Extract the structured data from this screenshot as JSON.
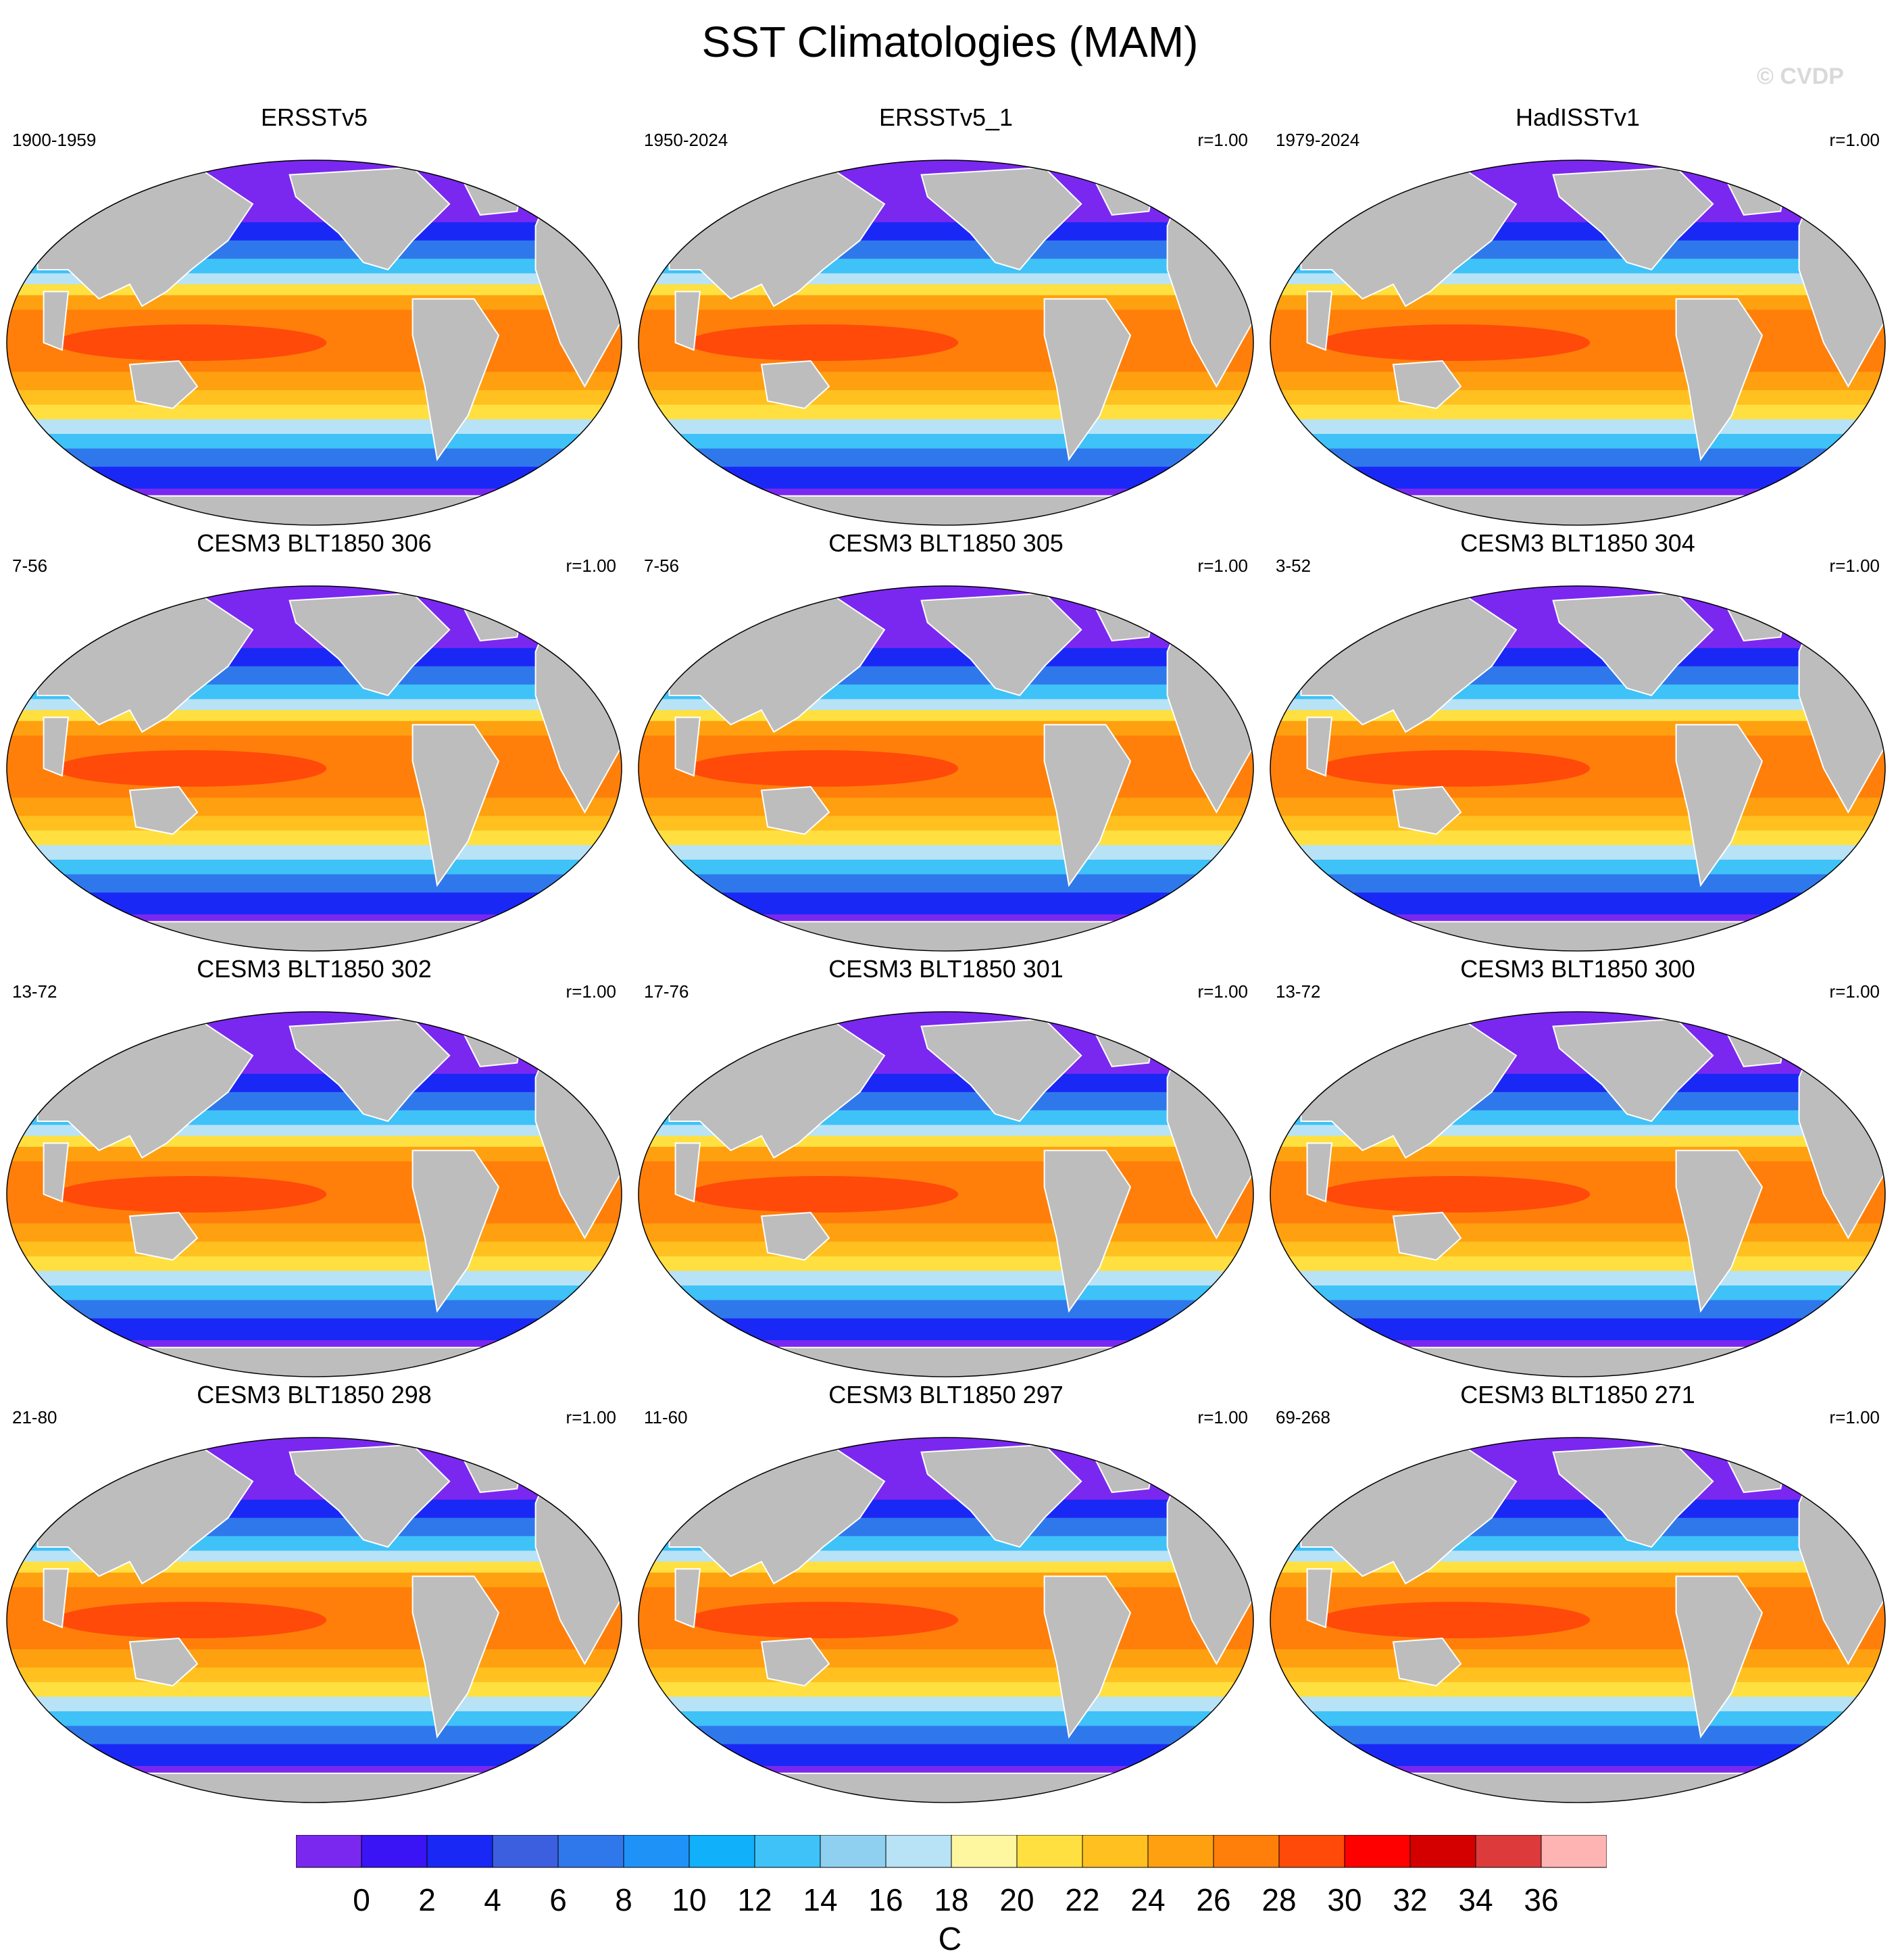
{
  "figure": {
    "title": "SST Climatologies (MAM)",
    "watermark": "© CVDP"
  },
  "chart_data": {
    "type": "heatmap",
    "title": "SST Climatologies (MAM)",
    "projection": "robinson",
    "land_color": "#bdbdbd",
    "panels": [
      {
        "title": "ERSSTv5",
        "period": "1900-1959",
        "correlation": ""
      },
      {
        "title": "ERSSTv5_1",
        "period": "1950-2024",
        "correlation": "r=1.00"
      },
      {
        "title": "HadISSTv1",
        "period": "1979-2024",
        "correlation": "r=1.00"
      },
      {
        "title": "CESM3 BLT1850 306",
        "period": "7-56",
        "correlation": "r=1.00"
      },
      {
        "title": "CESM3 BLT1850 305",
        "period": "7-56",
        "correlation": "r=1.00"
      },
      {
        "title": "CESM3 BLT1850 304",
        "period": "3-52",
        "correlation": "r=1.00"
      },
      {
        "title": "CESM3 BLT1850 302",
        "period": "13-72",
        "correlation": "r=1.00"
      },
      {
        "title": "CESM3 BLT1850 301",
        "period": "17-76",
        "correlation": "r=1.00"
      },
      {
        "title": "CESM3 BLT1850 300",
        "period": "13-72",
        "correlation": "r=1.00"
      },
      {
        "title": "CESM3 BLT1850 298",
        "period": "21-80",
        "correlation": "r=1.00"
      },
      {
        "title": "CESM3 BLT1850 297",
        "period": "11-60",
        "correlation": "r=1.00"
      },
      {
        "title": "CESM3 BLT1850 271",
        "period": "69-268",
        "correlation": "r=1.00"
      }
    ],
    "colorbar": {
      "units": "C",
      "tick_labels": [
        "0",
        "2",
        "4",
        "6",
        "8",
        "10",
        "12",
        "14",
        "16",
        "18",
        "20",
        "22",
        "24",
        "26",
        "28",
        "30",
        "32",
        "34",
        "36"
      ],
      "colors": [
        "#7a28f0",
        "#3a14f5",
        "#1a28f5",
        "#3c5fe0",
        "#2f78ec",
        "#1f92f8",
        "#10b0fa",
        "#3ec2f8",
        "#8fd0f0",
        "#b8e2f6",
        "#fff6a0",
        "#ffe040",
        "#ffc020",
        "#ffa010",
        "#ff7f0a",
        "#ff4a0a",
        "#ff0000",
        "#d40000",
        "#dd3b3b",
        "#ffb4b4"
      ]
    }
  }
}
